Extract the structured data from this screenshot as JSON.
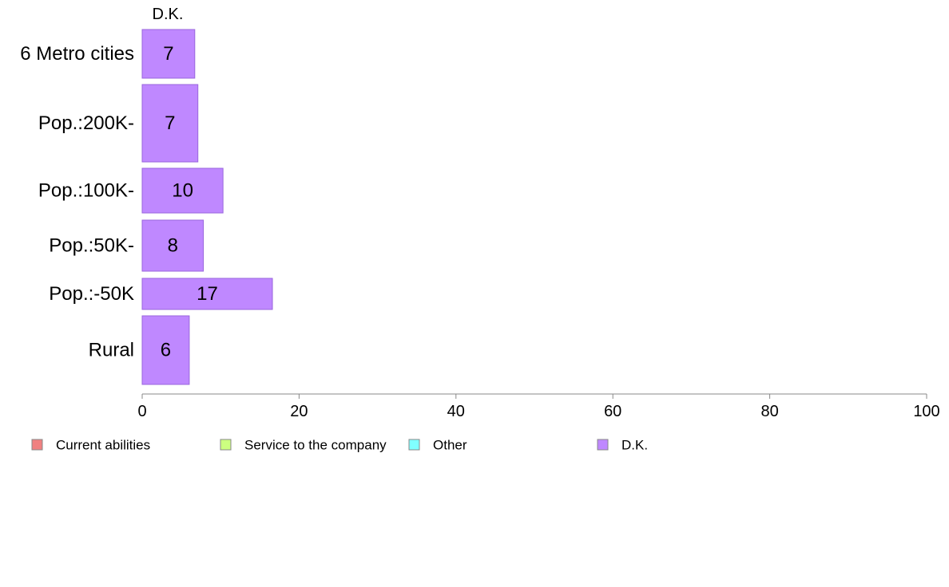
{
  "chart_data": {
    "type": "bar",
    "orientation": "horizontal",
    "stacked": true,
    "categories": [
      "6 Metro cities",
      "Pop.:200K-",
      "Pop.:100K-",
      "Pop.:50K-",
      "Pop.:-50K",
      "Rural"
    ],
    "series": [
      {
        "name": "Current abilities",
        "color": "#f08080",
        "values": [
          null,
          null,
          null,
          null,
          null,
          null
        ]
      },
      {
        "name": "Service to the company",
        "color": "#ccff80",
        "values": [
          null,
          null,
          null,
          null,
          null,
          null
        ]
      },
      {
        "name": "Other",
        "color": "#80ffff",
        "values": [
          null,
          null,
          null,
          null,
          null,
          null
        ]
      },
      {
        "name": "D.K.",
        "color": "#bf88ff",
        "values": [
          6.7,
          7.1,
          10.3,
          7.8,
          16.6,
          6.0
        ]
      }
    ],
    "data_labels": [
      "7",
      "7",
      "10",
      "8",
      "17",
      "6"
    ],
    "visible_header": "D.K.",
    "xlim": [
      0,
      100
    ],
    "xticks": [
      "0",
      "20",
      "40",
      "60",
      "80",
      "100"
    ],
    "bar_edge_color": "#9966dd",
    "axis_color": "#888888",
    "grid": false,
    "legend_position": "bottom"
  }
}
